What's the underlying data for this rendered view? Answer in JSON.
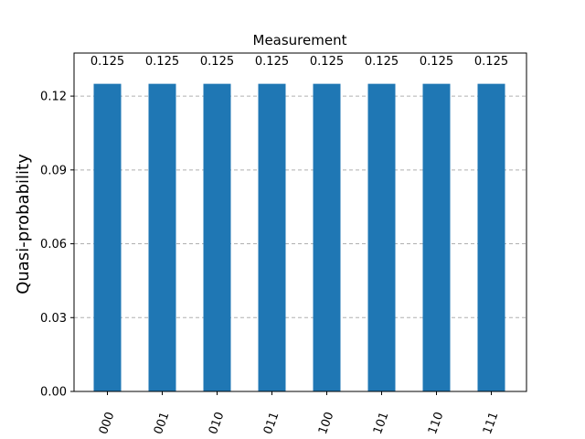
{
  "chart_data": {
    "type": "bar",
    "title": "Measurement",
    "xlabel": "",
    "ylabel": "Quasi-probability",
    "categories": [
      "000",
      "001",
      "010",
      "011",
      "100",
      "101",
      "110",
      "111"
    ],
    "values": [
      0.125,
      0.125,
      0.125,
      0.125,
      0.125,
      0.125,
      0.125,
      0.125
    ],
    "value_labels": [
      "0.125",
      "0.125",
      "0.125",
      "0.125",
      "0.125",
      "0.125",
      "0.125",
      "0.125"
    ],
    "ylim": [
      0,
      0.1375
    ],
    "yticks": [
      0,
      0.03,
      0.06,
      0.09,
      0.12
    ],
    "ytick_labels": [
      "0.00",
      "0.03",
      "0.06",
      "0.09",
      "0.12"
    ],
    "grid": "y-dashed",
    "bar_color": "#1f77b4",
    "grid_color": "#b0b0b0"
  }
}
